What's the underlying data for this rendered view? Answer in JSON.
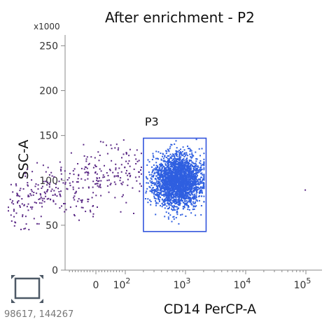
{
  "coordinate_readout": "98617, 144267",
  "toolbar": {
    "icon": "rectangle-gate-tool-icon",
    "color": "#4d5966"
  },
  "chart_data": {
    "type": "scatter",
    "title": "After enrichment - P2",
    "xlabel": "CD14 PerCP-A",
    "ylabel": "SSC-A",
    "y_multiplier_label": "x1000",
    "y_scale": "linear",
    "x_scale": "biexponential",
    "ylim": [
      0,
      262
    ],
    "y_ticks": [
      0,
      50,
      100,
      150,
      200,
      250
    ],
    "x_ticks": [
      {
        "value": 0,
        "label": "0"
      },
      {
        "value": 100,
        "label": "10",
        "exp": "2"
      },
      {
        "value": 1000,
        "label": "10",
        "exp": "3"
      },
      {
        "value": 10000,
        "label": "10",
        "exp": "4"
      },
      {
        "value": 100000,
        "label": "10",
        "exp": "5"
      }
    ],
    "grid": false,
    "gate": {
      "name": "P3",
      "x_range": [
        200,
        2200
      ],
      "y_range": [
        43,
        147
      ],
      "color": "#3355dd"
    },
    "series": [
      {
        "color": "#5b2a86",
        "x_range": [
          -300,
          180
        ],
        "y_range": [
          45,
          150
        ],
        "count": 360,
        "region": "outside-gate"
      },
      {
        "color": "#2f5fe0",
        "x_range": [
          200,
          2200
        ],
        "y_range": [
          45,
          148
        ],
        "count": 2600,
        "center": [
          750,
          100
        ],
        "region": "inside-gate"
      },
      {
        "color": "#5b2a86",
        "points": [
          [
            95000,
            90
          ]
        ]
      }
    ]
  }
}
